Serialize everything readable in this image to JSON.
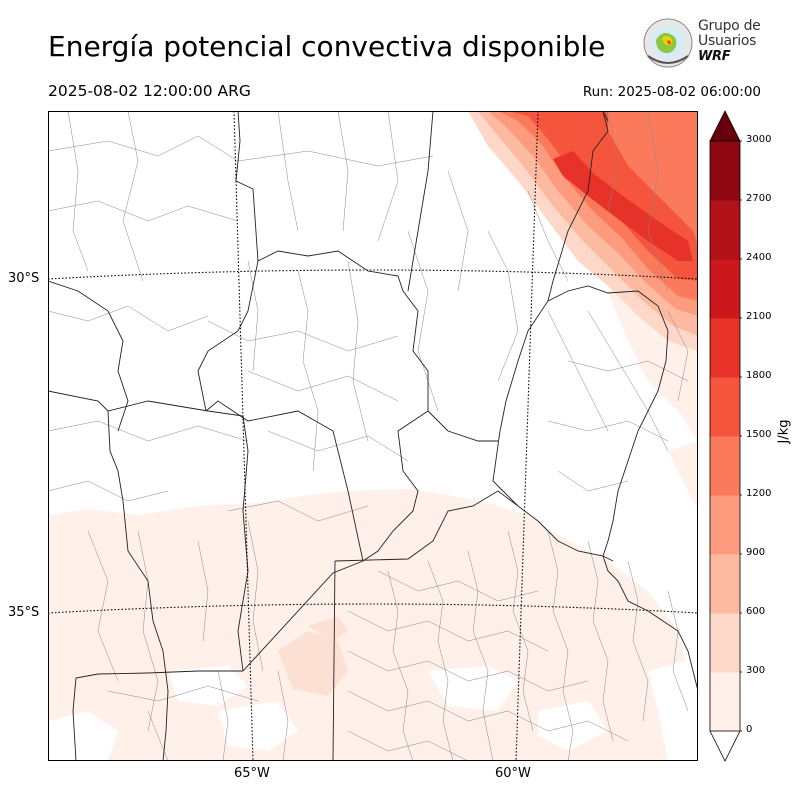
{
  "title": "Energía potencial convectiva disponible",
  "valid_time": "2025-08-02 12:00:00 ARG",
  "run_time": "Run: 2025-08-02 06:00:00",
  "logo": {
    "line1": "Grupo de",
    "line2": "Usuarios",
    "line3": "WRF"
  },
  "map": {
    "lat_labels": [
      "30°S",
      "35°S"
    ],
    "lon_labels": [
      "65°W",
      "60°W"
    ]
  },
  "colorbar": {
    "unit": "J/kg",
    "ticks": [
      "0",
      "300",
      "600",
      "900",
      "1200",
      "1500",
      "1800",
      "2100",
      "2400",
      "2700",
      "3000"
    ],
    "colors": [
      "#fff0e9",
      "#fdd8c8",
      "#fcbba1",
      "#fc9b7d",
      "#fb7a5b",
      "#f5553d",
      "#e63228",
      "#cb181d",
      "#b01218",
      "#8f0811",
      "#67000d"
    ],
    "extend": "both"
  }
}
